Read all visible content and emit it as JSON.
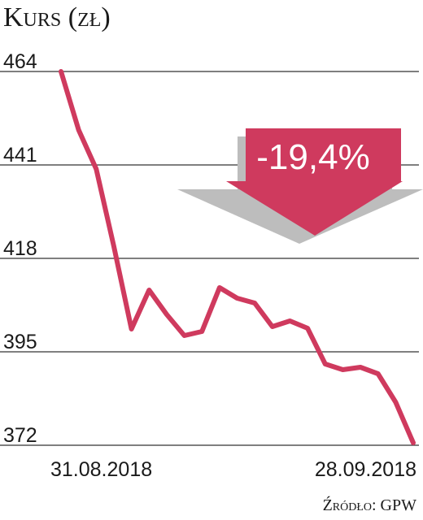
{
  "chart_data": {
    "type": "line",
    "title": "Kurs (zł)",
    "categories": [
      "31.08.2018",
      null,
      null,
      null,
      null,
      null,
      null,
      null,
      null,
      null,
      null,
      null,
      null,
      null,
      null,
      null,
      null,
      null,
      null,
      null,
      "28.09.2018"
    ],
    "values": [
      464,
      449.6,
      440,
      421,
      400.6,
      410.2,
      404.2,
      399,
      400,
      410.8,
      408.2,
      407,
      401.2,
      402.6,
      400.8,
      392,
      390.6,
      391.2,
      389.6,
      382.6,
      372.6
    ],
    "color": "#cf3a5e",
    "ylim": [
      372,
      464
    ],
    "yticks": [
      372,
      395,
      418,
      441,
      464
    ],
    "grid": true,
    "annotation": "-19,4%",
    "source": "Źródło: GPW"
  }
}
